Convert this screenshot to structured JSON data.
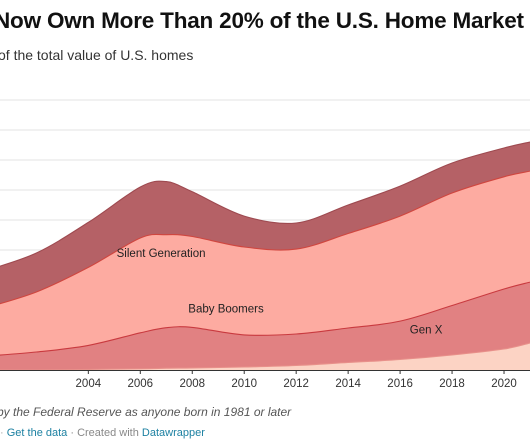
{
  "header": {
    "title": "Now Own More Than 20% of the U.S. Home Market",
    "subtitle": "of the total value of U.S. homes"
  },
  "chart_data": {
    "type": "area",
    "stacked": true,
    "x": [
      2000,
      2002,
      2004,
      2006,
      2007,
      2008,
      2010,
      2012,
      2014,
      2016,
      2018,
      2020,
      2021
    ],
    "xlim": [
      2000.6,
      2021
    ],
    "ylim": [
      0,
      90
    ],
    "x_ticks": [
      "2004",
      "2006",
      "2008",
      "2010",
      "2012",
      "2014",
      "2016",
      "2018",
      "2020"
    ],
    "grid": true,
    "series": [
      {
        "name": "",
        "color": "#fcd3c4",
        "values": [
          0,
          0,
          0.2,
          0.4,
          0.6,
          0.7,
          1,
          1.5,
          2.5,
          3.5,
          5,
          7,
          9
        ]
      },
      {
        "name": "Gen X",
        "color": "#e18182",
        "values": [
          4.6,
          6,
          8,
          12,
          13.5,
          13.5,
          10.7,
          10.5,
          11.5,
          12.8,
          16.5,
          20,
          20.3
        ]
      },
      {
        "name": "Baby Boomers",
        "color": "#fdaba1",
        "values": [
          16,
          20,
          26,
          31.6,
          31,
          30.3,
          29.3,
          28.3,
          31.5,
          35,
          37.5,
          37.4,
          37
        ]
      },
      {
        "name": "Silent Generation",
        "color": "#b56166",
        "values": [
          12.4,
          13,
          15,
          17,
          17.7,
          14.9,
          10.3,
          8.7,
          9.5,
          10,
          10,
          9.6,
          9.7
        ]
      }
    ],
    "labels": [
      "Silent Generation",
      "Baby Boomers",
      "Gen X"
    ]
  },
  "footer": {
    "notes": "by the Federal Reserve as anyone born in 1981 or later",
    "source_lead": "·",
    "get_data": "Get the data",
    "created_with": "· Created with",
    "tool": "Datawrapper"
  }
}
